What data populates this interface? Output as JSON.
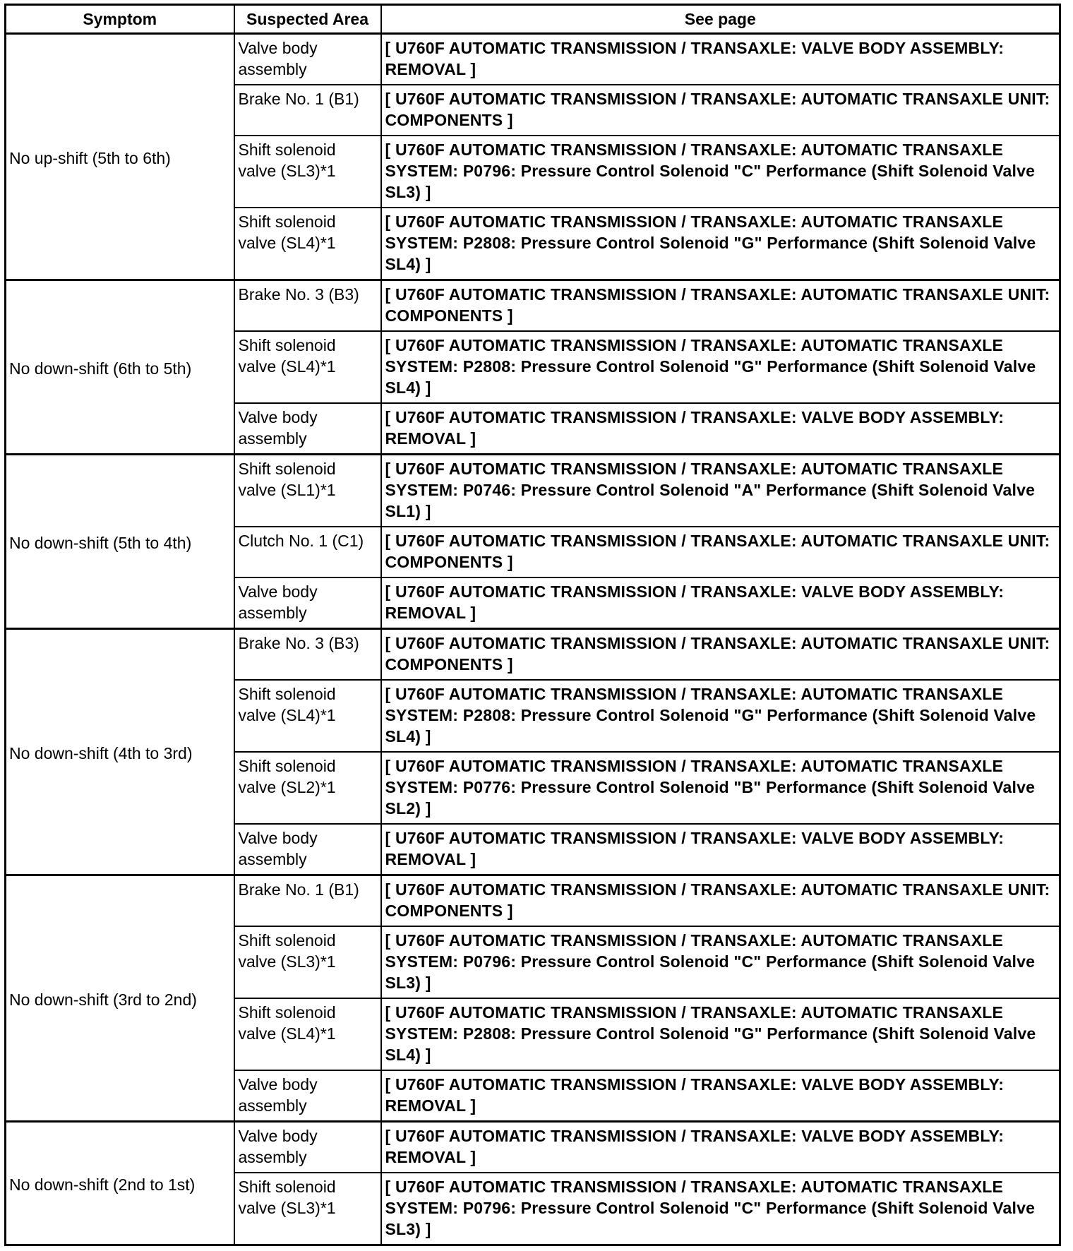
{
  "headers": [
    "Symptom",
    "Suspected Area",
    "See page"
  ],
  "groups": [
    {
      "symptom": "No up-shift (5th to 6th)",
      "rows": [
        {
          "area": "Valve body assembly",
          "ref": "[ U760F AUTOMATIC TRANSMISSION / TRANSAXLE: VALVE BODY ASSEMBLY: REMOVAL ]"
        },
        {
          "area": "Brake No. 1 (B1)",
          "ref": "[ U760F AUTOMATIC TRANSMISSION / TRANSAXLE: AUTOMATIC TRANSAXLE UNIT: COMPONENTS ]"
        },
        {
          "area": "Shift solenoid valve (SL3)*1",
          "ref": "[ U760F AUTOMATIC TRANSMISSION / TRANSAXLE: AUTOMATIC TRANSAXLE SYSTEM: P0796: Pressure Control Solenoid \"C\" Performance (Shift Solenoid Valve SL3) ]"
        },
        {
          "area": "Shift solenoid valve (SL4)*1",
          "ref": "[ U760F AUTOMATIC TRANSMISSION / TRANSAXLE: AUTOMATIC TRANSAXLE SYSTEM: P2808: Pressure Control Solenoid \"G\" Performance (Shift Solenoid Valve SL4) ]"
        }
      ]
    },
    {
      "symptom": "No down-shift (6th to 5th)",
      "rows": [
        {
          "area": "Brake No. 3 (B3)",
          "ref": "[ U760F AUTOMATIC TRANSMISSION / TRANSAXLE: AUTOMATIC TRANSAXLE UNIT: COMPONENTS ]"
        },
        {
          "area": "Shift solenoid valve (SL4)*1",
          "ref": "[ U760F AUTOMATIC TRANSMISSION / TRANSAXLE: AUTOMATIC TRANSAXLE SYSTEM: P2808: Pressure Control Solenoid \"G\" Performance (Shift Solenoid Valve SL4) ]"
        },
        {
          "area": "Valve body assembly",
          "ref": "[ U760F AUTOMATIC TRANSMISSION / TRANSAXLE: VALVE BODY ASSEMBLY: REMOVAL ]"
        }
      ]
    },
    {
      "symptom": "No down-shift (5th to 4th)",
      "rows": [
        {
          "area": "Shift solenoid valve (SL1)*1",
          "ref": "[ U760F AUTOMATIC TRANSMISSION / TRANSAXLE: AUTOMATIC TRANSAXLE SYSTEM: P0746: Pressure Control Solenoid \"A\" Performance (Shift Solenoid Valve SL1) ]"
        },
        {
          "area": "Clutch No. 1 (C1)",
          "ref": "[ U760F AUTOMATIC TRANSMISSION / TRANSAXLE: AUTOMATIC TRANSAXLE UNIT: COMPONENTS ]"
        },
        {
          "area": "Valve body assembly",
          "ref": "[ U760F AUTOMATIC TRANSMISSION / TRANSAXLE: VALVE BODY ASSEMBLY: REMOVAL ]"
        }
      ]
    },
    {
      "symptom": "No down-shift (4th to 3rd)",
      "rows": [
        {
          "area": "Brake No. 3 (B3)",
          "ref": "[ U760F AUTOMATIC TRANSMISSION / TRANSAXLE: AUTOMATIC TRANSAXLE UNIT: COMPONENTS ]"
        },
        {
          "area": "Shift solenoid valve (SL4)*1",
          "ref": "[ U760F AUTOMATIC TRANSMISSION / TRANSAXLE: AUTOMATIC TRANSAXLE SYSTEM: P2808: Pressure Control Solenoid \"G\" Performance (Shift Solenoid Valve SL4) ]"
        },
        {
          "area": "Shift solenoid valve (SL2)*1",
          "ref": "[ U760F AUTOMATIC TRANSMISSION / TRANSAXLE: AUTOMATIC TRANSAXLE SYSTEM: P0776: Pressure Control Solenoid \"B\" Performance (Shift Solenoid Valve SL2) ]"
        },
        {
          "area": "Valve body assembly",
          "ref": "[ U760F AUTOMATIC TRANSMISSION / TRANSAXLE: VALVE BODY ASSEMBLY: REMOVAL ]"
        }
      ]
    },
    {
      "symptom": "No down-shift (3rd to 2nd)",
      "rows": [
        {
          "area": "Brake No. 1 (B1)",
          "ref": "[ U760F AUTOMATIC TRANSMISSION / TRANSAXLE: AUTOMATIC TRANSAXLE UNIT: COMPONENTS ]"
        },
        {
          "area": "Shift solenoid valve (SL3)*1",
          "ref": "[ U760F AUTOMATIC TRANSMISSION / TRANSAXLE: AUTOMATIC TRANSAXLE SYSTEM: P0796: Pressure Control Solenoid \"C\" Performance (Shift Solenoid Valve SL3) ]"
        },
        {
          "area": "Shift solenoid valve (SL4)*1",
          "ref": "[ U760F AUTOMATIC TRANSMISSION / TRANSAXLE: AUTOMATIC TRANSAXLE SYSTEM: P2808: Pressure Control Solenoid \"G\" Performance (Shift Solenoid Valve SL4) ]"
        },
        {
          "area": "Valve body assembly",
          "ref": "[ U760F AUTOMATIC TRANSMISSION / TRANSAXLE: VALVE BODY ASSEMBLY: REMOVAL ]"
        }
      ]
    },
    {
      "symptom": "No down-shift (2nd to 1st)",
      "rows": [
        {
          "area": "Valve body assembly",
          "ref": "[ U760F AUTOMATIC TRANSMISSION / TRANSAXLE: VALVE BODY ASSEMBLY: REMOVAL ]"
        },
        {
          "area": "Shift solenoid valve (SL3)*1",
          "ref": "[ U760F AUTOMATIC TRANSMISSION / TRANSAXLE: AUTOMATIC TRANSAXLE SYSTEM: P0796: Pressure Control Solenoid \"C\" Performance (Shift Solenoid Valve SL3) ]"
        }
      ]
    }
  ]
}
